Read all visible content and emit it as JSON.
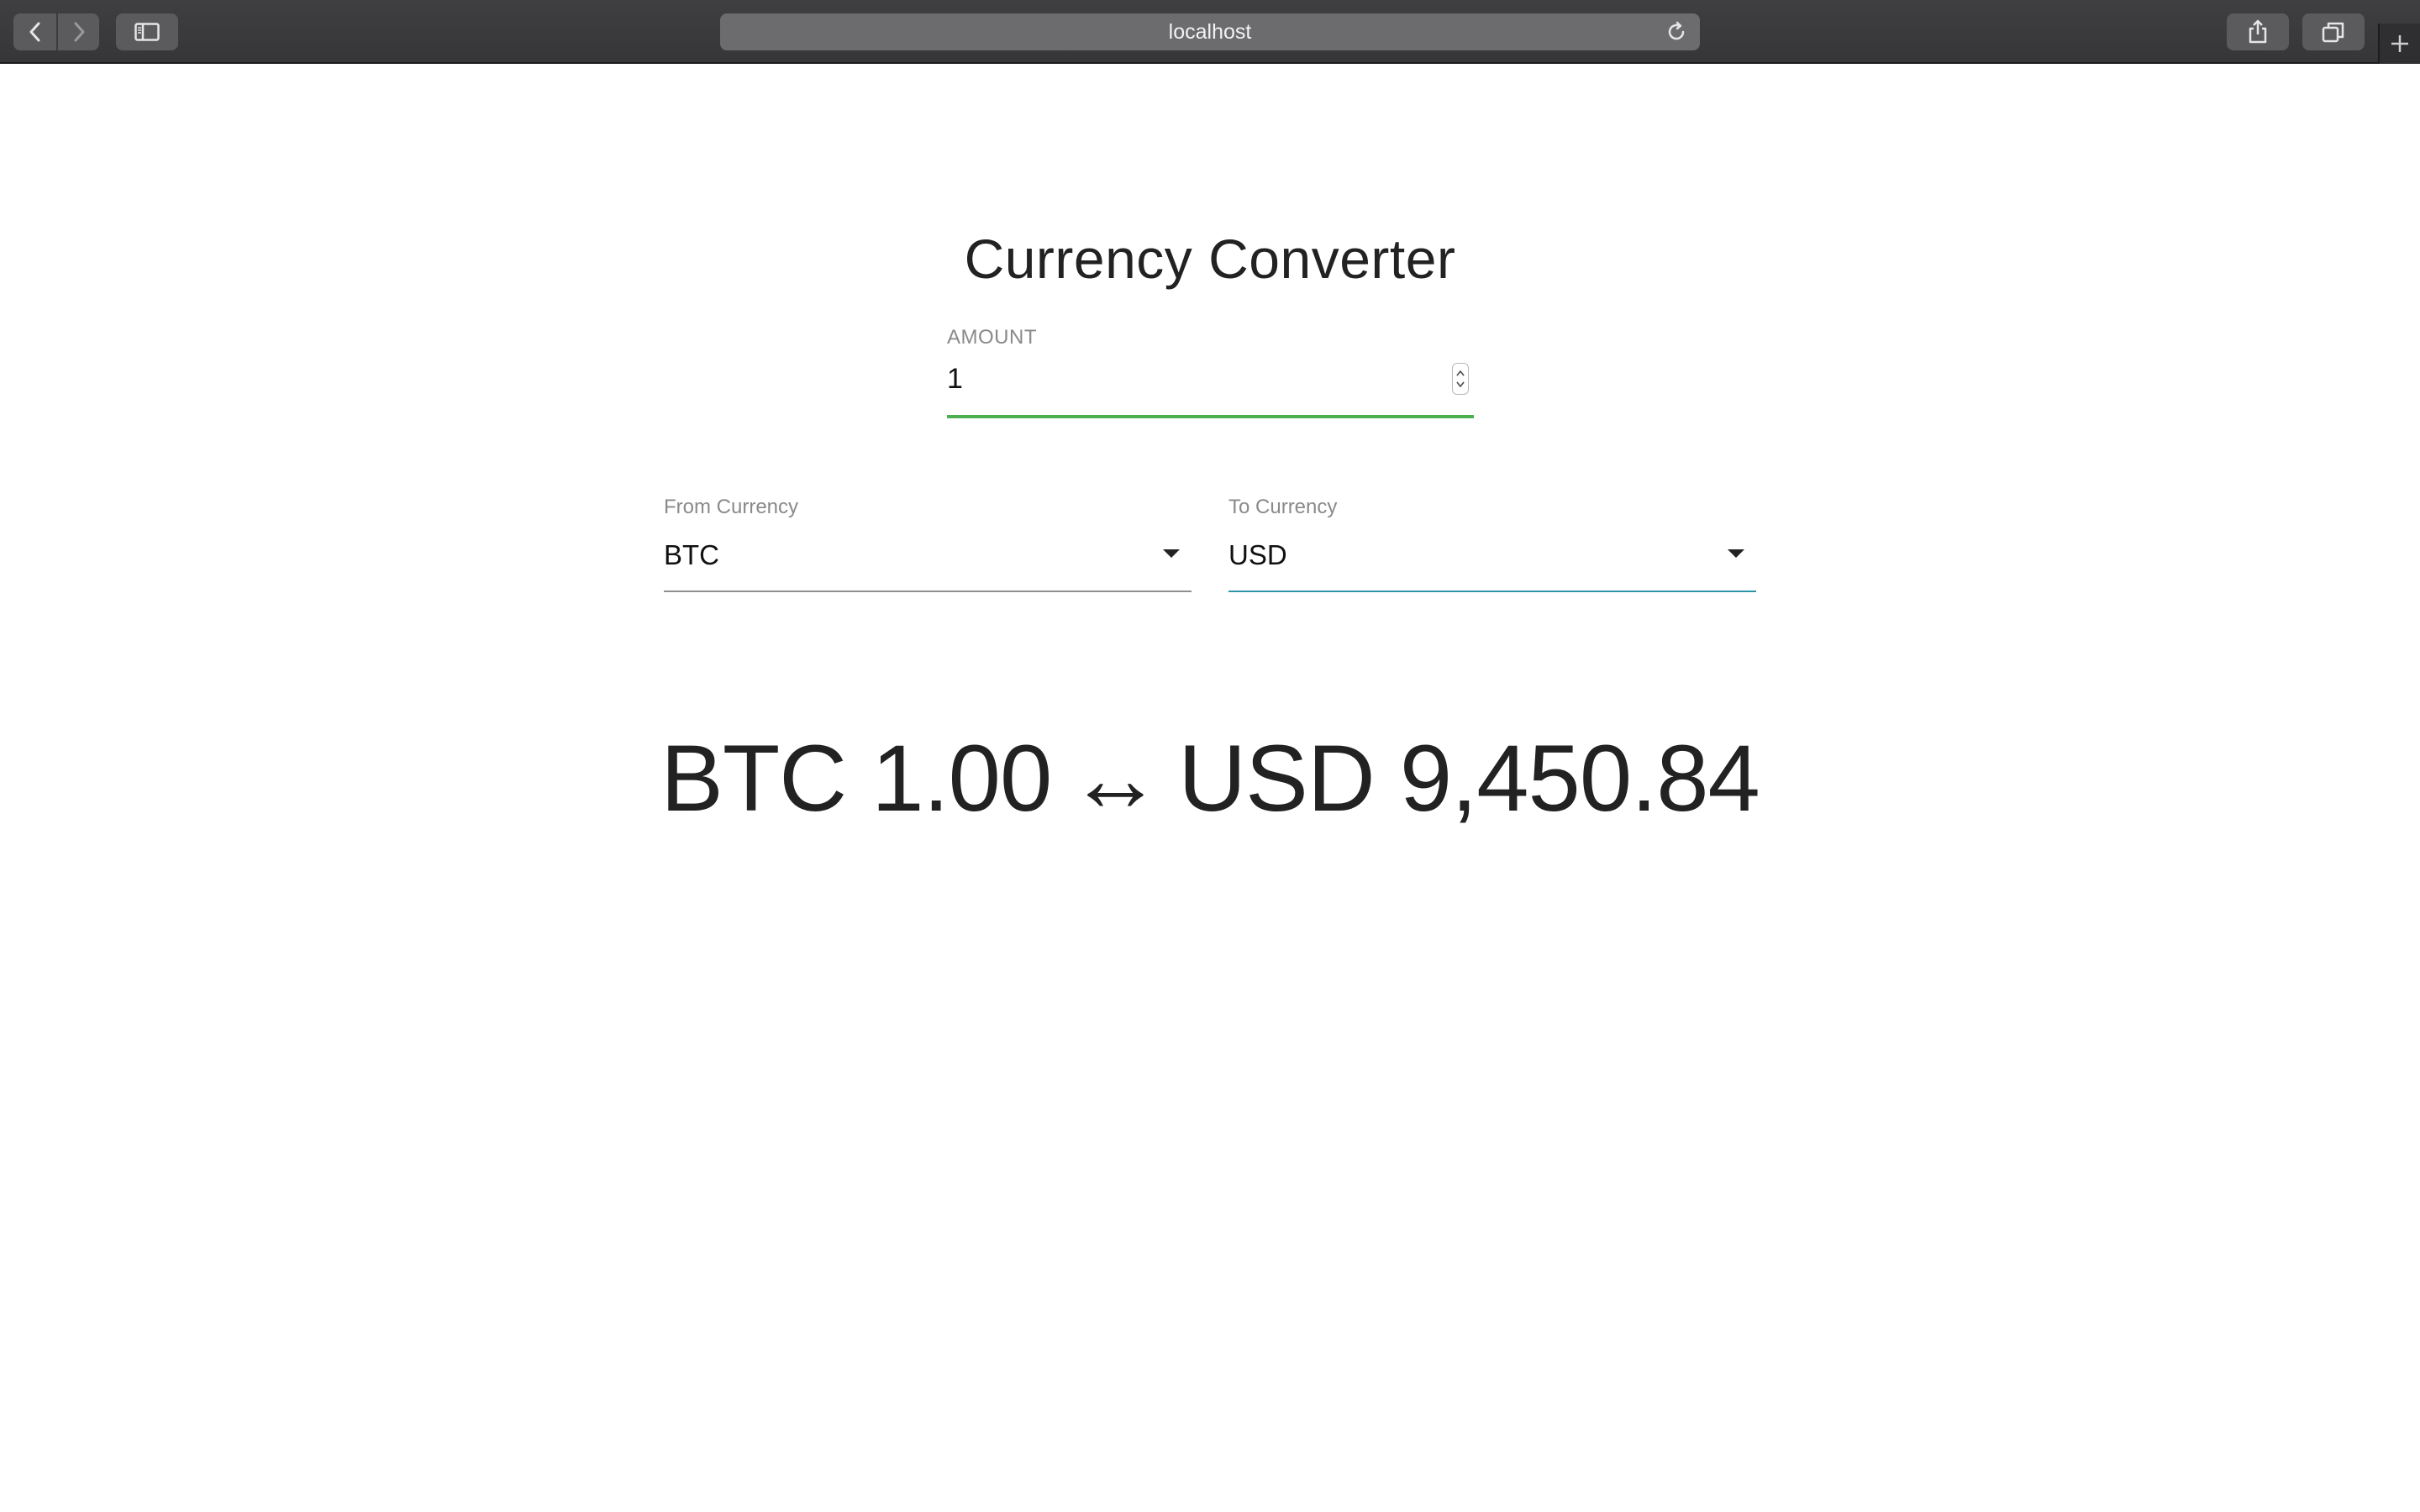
{
  "browser": {
    "url": "localhost"
  },
  "page": {
    "title": "Currency Converter"
  },
  "amount": {
    "label": "AMOUNT",
    "value": "1"
  },
  "from_currency": {
    "label": "From Currency",
    "selected": "BTC"
  },
  "to_currency": {
    "label": "To Currency",
    "selected": "USD"
  },
  "result": {
    "from_text": "BTC 1.00",
    "arrow": "↔",
    "to_text": "USD 9,450.84"
  },
  "colors": {
    "amount_underline": "#4caf50",
    "to_currency_underline": "#2f93a8",
    "toolbar": "#3f3f41"
  },
  "icons": {
    "back": "chevron-left-icon",
    "forward": "chevron-right-icon",
    "sidebar": "sidebar-icon",
    "reload": "reload-icon",
    "share": "share-icon",
    "tabs": "tabs-icon",
    "new_tab": "plus-icon",
    "stepper": "stepper-icon",
    "dropdown": "caret-down-icon"
  }
}
